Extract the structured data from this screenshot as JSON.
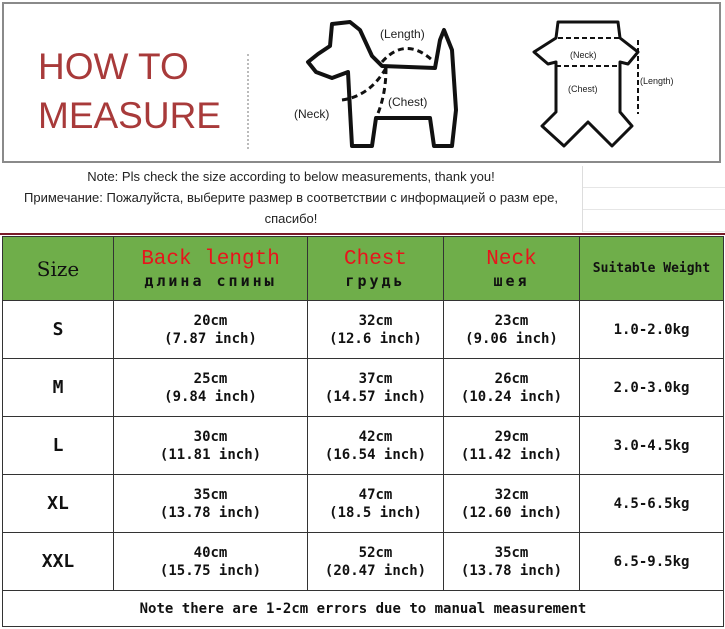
{
  "banner": {
    "title_line1": "HOW TO",
    "title_line2": "MEASURE",
    "dog_labels": {
      "length": "(Length)",
      "neck": "(Neck)",
      "chest": "(Chest)"
    },
    "garment_labels": {
      "neck": "(Neck)",
      "chest": "(Chest)",
      "length": "(Length)"
    }
  },
  "notes": {
    "en": "Note: Pls check the size according to below measurements, thank you!",
    "ru": "Примечание: Пожалуйста, выберите размер в соответствии с информацией о разм ере, спасибо!"
  },
  "table": {
    "headers": [
      {
        "en": "Size"
      },
      {
        "en": "Back length",
        "ru": "длина спины"
      },
      {
        "en": "Chest",
        "ru": "грудь"
      },
      {
        "en": "Neck",
        "ru": "шея"
      },
      {
        "en": "Suitable Weight"
      }
    ],
    "rows": [
      {
        "size": "S",
        "back": "20cm",
        "back_in": "(7.87 inch)",
        "chest": "32cm",
        "chest_in": "(12.6 inch)",
        "neck": "23cm",
        "neck_in": "(9.06 inch)",
        "weight": "1.0-2.0kg"
      },
      {
        "size": "M",
        "back": "25cm",
        "back_in": "(9.84 inch)",
        "chest": "37cm",
        "chest_in": "(14.57 inch)",
        "neck": "26cm",
        "neck_in": "(10.24 inch)",
        "weight": "2.0-3.0kg"
      },
      {
        "size": "L",
        "back": "30cm",
        "back_in": "(11.81 inch)",
        "chest": "42cm",
        "chest_in": "(16.54 inch)",
        "neck": "29cm",
        "neck_in": "(11.42 inch)",
        "weight": "3.0-4.5kg"
      },
      {
        "size": "XL",
        "back": "35cm",
        "back_in": "(13.78 inch)",
        "chest": "47cm",
        "chest_in": "(18.5 inch)",
        "neck": "32cm",
        "neck_in": "(12.60 inch)",
        "weight": "4.5-6.5kg"
      },
      {
        "size": "XXL",
        "back": "40cm",
        "back_in": "(15.75 inch)",
        "chest": "52cm",
        "chest_in": "(20.47 inch)",
        "neck": "35cm",
        "neck_in": "(13.78 inch)",
        "weight": "6.5-9.5kg"
      }
    ],
    "footer_note": "Note there are 1-2cm errors due to manual measurement"
  },
  "colors": {
    "header_bg": "#6fae4a",
    "header_red": "#e8141c",
    "title": "#a83a3a"
  }
}
